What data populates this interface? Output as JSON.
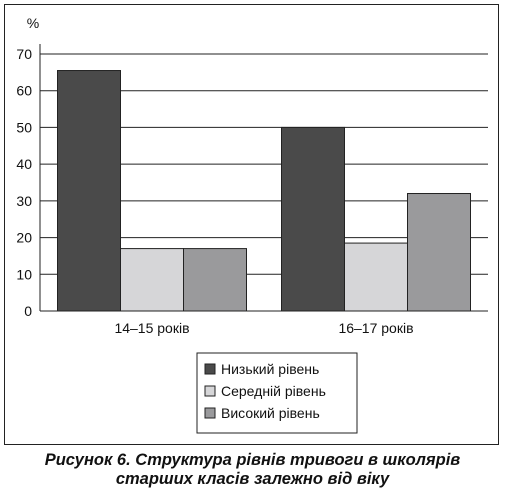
{
  "chart_data": {
    "type": "bar",
    "title": "",
    "ylabel": "%",
    "xlabel": "",
    "ylim": [
      0,
      70
    ],
    "yticks": [
      0,
      10,
      20,
      30,
      40,
      50,
      60,
      70
    ],
    "grid": true,
    "categories": [
      "14–15 років",
      "16–17 років"
    ],
    "series": [
      {
        "name": "Низький рівень",
        "values": [
          65.5,
          50
        ],
        "color": "#4a4a4a"
      },
      {
        "name": "Середній рівень",
        "values": [
          17,
          18.5
        ],
        "color": "#d6d6d8"
      },
      {
        "name": "Високий рівень",
        "values": [
          17,
          32
        ],
        "color": "#9a9a9c"
      }
    ],
    "legend_placement": "bottom-center"
  },
  "caption": {
    "line1": "Рисунок 6. Структура рівнів тривоги в школярів",
    "line2": "старших класів залежно від віку"
  }
}
